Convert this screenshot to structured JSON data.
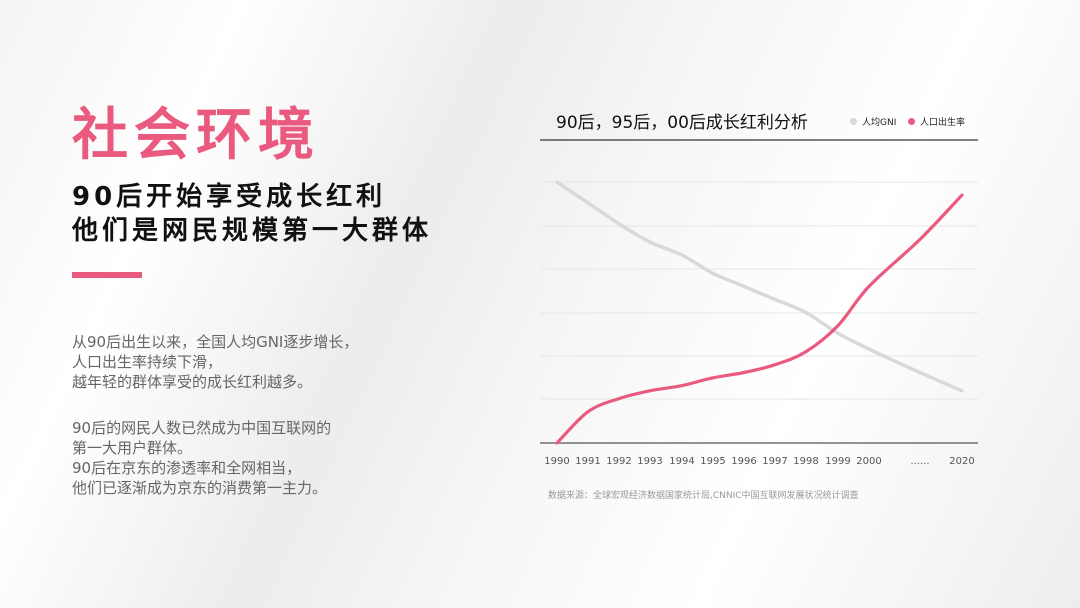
{
  "title": "社会环境",
  "subtitle": {
    "line1": "90后开始享受成长红利",
    "line2": "他们是网民规模第一大群体"
  },
  "paragraph1": {
    "line1": "从90后出生以来，全国人均GNI逐步增长，",
    "line2": "人口出生率持续下滑，",
    "line3": "越年轻的群体享受的成长红利越多。"
  },
  "paragraph2": {
    "line1": "90后的网民人数已然成为中国互联网的",
    "line2": "第一大用户群体。",
    "line3": "90后在京东的渗透率和全网相当，",
    "line4": "他们已逐渐成为京东的消费第一主力。"
  },
  "source": "数据来源：全球宏观经济数据国家统计局,CNNIC中国互联网发展状况统计调查",
  "colors": {
    "accent": "#ea5a7e",
    "gni": "#d9d9d9",
    "birth": "#ea5a7e"
  },
  "chart_data": {
    "type": "line",
    "title": "90后，95后，00后成长红利分析",
    "xlabel": "",
    "ylabel": "",
    "categories": [
      "1990",
      "1991",
      "1992",
      "1993",
      "1994",
      "1995",
      "1996",
      "1997",
      "1998",
      "1999",
      "2000",
      "......",
      "2020"
    ],
    "series": [
      {
        "name": "人均GNI",
        "color": "#d9d9d9",
        "values": [
          100,
          92,
          84,
          77,
          72,
          65,
          60,
          55,
          50,
          42,
          36,
          27,
          20
        ]
      },
      {
        "name": "人口出生率",
        "color": "#ea5a7e",
        "values": [
          0,
          12,
          17,
          20,
          22,
          25,
          27,
          30,
          35,
          45,
          60,
          78,
          95
        ]
      }
    ],
    "ylim": [
      0,
      100
    ],
    "grid": true,
    "legend": "top-right"
  }
}
